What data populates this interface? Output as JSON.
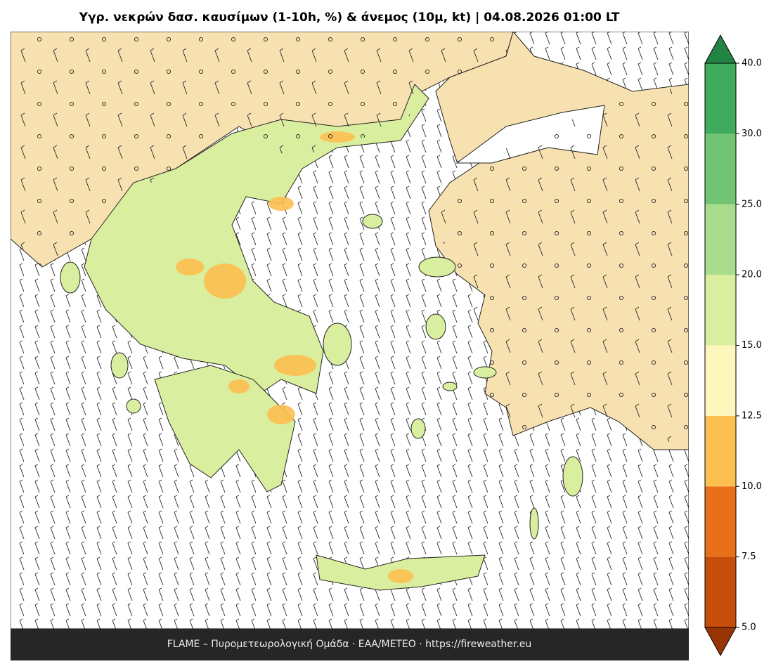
{
  "title": "Υγρ. νεκρών δασ. καυσίμων (1-10h, %) & άνεμος (10μ, kt)  |  04.08.2026 01:00 LT",
  "footer": "FLAME – Πυρομετεωρολογική Ομάδα · ΕΑΑ/METEO · https://fireweather.eu",
  "colorbar": {
    "ticks": [
      {
        "value": 5,
        "label": "5.0"
      },
      {
        "value": 7.5,
        "label": "7.5"
      },
      {
        "value": 10,
        "label": "10.0"
      },
      {
        "value": 12.5,
        "label": "12.5"
      },
      {
        "value": 15,
        "label": "15.0"
      },
      {
        "value": 20,
        "label": "20.0"
      },
      {
        "value": 25,
        "label": "25.0"
      },
      {
        "value": 30,
        "label": "30.0"
      },
      {
        "value": 40,
        "label": "40.0"
      }
    ],
    "colors": [
      "#c64d0a",
      "#e8701a",
      "#fdbf50",
      "#fff6bd",
      "#d9ef9f",
      "#a9dc8c",
      "#72c475",
      "#41ab5d"
    ],
    "under_color": "#993404",
    "over_color": "#238443"
  }
}
